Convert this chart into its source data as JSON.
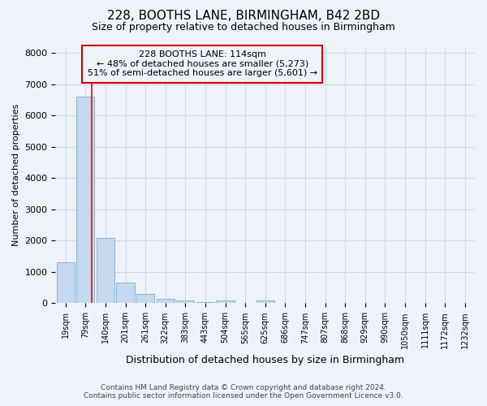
{
  "title": "228, BOOTHS LANE, BIRMINGHAM, B42 2BD",
  "subtitle": "Size of property relative to detached houses in Birmingham",
  "xlabel": "Distribution of detached houses by size in Birmingham",
  "ylabel": "Number of detached properties",
  "footer_line1": "Contains HM Land Registry data © Crown copyright and database right 2024.",
  "footer_line2": "Contains public sector information licensed under the Open Government Licence v3.0.",
  "categories": [
    "19sqm",
    "79sqm",
    "140sqm",
    "201sqm",
    "261sqm",
    "322sqm",
    "383sqm",
    "443sqm",
    "504sqm",
    "565sqm",
    "625sqm",
    "686sqm",
    "747sqm",
    "807sqm",
    "868sqm",
    "929sqm",
    "990sqm",
    "1050sqm",
    "1111sqm",
    "1172sqm",
    "1232sqm"
  ],
  "values": [
    1300,
    6600,
    2100,
    650,
    300,
    150,
    100,
    50,
    80,
    0,
    80,
    0,
    0,
    0,
    0,
    0,
    0,
    0,
    0,
    0,
    0
  ],
  "bar_color": "#c5d8ed",
  "bar_edge_color": "#7aadcf",
  "grid_color": "#d0dae8",
  "background_color": "#eef2f9",
  "red_line_x": 1.32,
  "annotation_text": "228 BOOTHS LANE: 114sqm\n← 48% of detached houses are smaller (5,273)\n51% of semi-detached houses are larger (5,601) →",
  "annotation_box_color": "#cc0000",
  "ylim": [
    0,
    8200
  ],
  "yticks": [
    0,
    1000,
    2000,
    3000,
    4000,
    5000,
    6000,
    7000,
    8000
  ],
  "title_fontsize": 11,
  "subtitle_fontsize": 9,
  "xlabel_fontsize": 9,
  "ylabel_fontsize": 8,
  "tick_fontsize": 8,
  "xtick_fontsize": 7
}
